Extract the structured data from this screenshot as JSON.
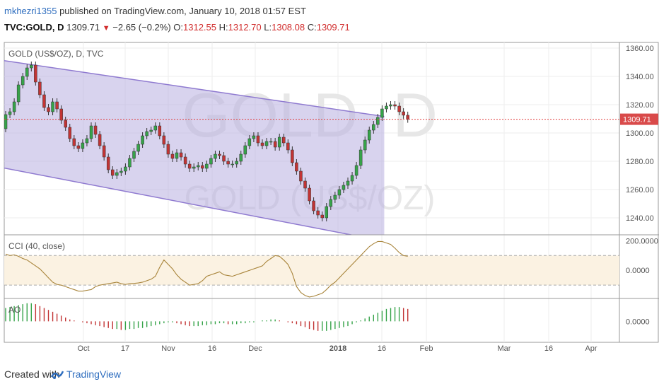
{
  "header": {
    "user": "mkhezri1355",
    "published_text": "published on TradingView.com, January 10, 2018 01:57 EST",
    "symbol": "TVC:GOLD, D",
    "last": "1309.71",
    "change": "−2.65 (−0.2%)",
    "o_label": "O:",
    "o_value": "1312.55",
    "h_label": "H:",
    "h_value": "1312.70",
    "l_label": "L:",
    "l_value": "1308.08",
    "c_label": "C:",
    "c_value": "1309.71"
  },
  "footer": {
    "created_with": "Created with",
    "brand": "TradingView"
  },
  "chart_data": [
    {
      "type": "candlestick",
      "title": "GOLD (US$/OZ), D, TVC",
      "watermark_line1": "GOLD, D",
      "watermark_line2": "GOLD (US$/OZ)",
      "x_ticks": [
        "Oct",
        "17",
        "Nov",
        "16",
        "Dec",
        "2018",
        "16",
        "Feb",
        "Mar",
        "16",
        "Apr"
      ],
      "y_ticks": [
        1360,
        1340,
        1320,
        1300,
        1280,
        1260,
        1240
      ],
      "ylim": [
        1228,
        1364
      ],
      "last_price_label": "1309.71",
      "last_price": 1309.71,
      "grid": true,
      "channel": {
        "upper": [
          [
            0,
            1351
          ],
          [
            90,
            1311
          ]
        ],
        "lower": [
          [
            0,
            1275
          ],
          [
            79,
            1229
          ]
        ]
      },
      "closes": [
        1313,
        1315,
        1322,
        1334,
        1340,
        1346,
        1348,
        1336,
        1327,
        1318,
        1315,
        1322,
        1317,
        1309,
        1304,
        1296,
        1291,
        1289,
        1293,
        1296,
        1305,
        1299,
        1291,
        1283,
        1274,
        1270,
        1272,
        1273,
        1276,
        1282,
        1287,
        1292,
        1298,
        1301,
        1302,
        1305,
        1298,
        1292,
        1285,
        1282,
        1286,
        1283,
        1278,
        1275,
        1276,
        1277,
        1275,
        1278,
        1282,
        1285,
        1284,
        1280,
        1278,
        1278,
        1280,
        1285,
        1291,
        1296,
        1298,
        1293,
        1291,
        1294,
        1294,
        1290,
        1297,
        1293,
        1288,
        1279,
        1273,
        1266,
        1261,
        1252,
        1245,
        1242,
        1240,
        1248,
        1253,
        1256,
        1260,
        1263,
        1266,
        1270,
        1277,
        1288,
        1295,
        1302,
        1306,
        1311,
        1317,
        1319,
        1320,
        1319,
        1315,
        1312.55,
        1309.71
      ],
      "opens": [
        1303,
        1313,
        1315,
        1322,
        1334,
        1340,
        1346,
        1348,
        1336,
        1327,
        1318,
        1315,
        1322,
        1317,
        1309,
        1304,
        1296,
        1291,
        1289,
        1293,
        1296,
        1305,
        1299,
        1291,
        1283,
        1274,
        1270,
        1272,
        1273,
        1276,
        1282,
        1287,
        1292,
        1298,
        1301,
        1302,
        1305,
        1298,
        1292,
        1285,
        1282,
        1286,
        1283,
        1278,
        1275,
        1276,
        1277,
        1275,
        1278,
        1282,
        1285,
        1284,
        1280,
        1278,
        1278,
        1280,
        1285,
        1291,
        1296,
        1298,
        1293,
        1291,
        1294,
        1294,
        1290,
        1297,
        1293,
        1288,
        1279,
        1273,
        1266,
        1261,
        1252,
        1245,
        1242,
        1240,
        1248,
        1253,
        1256,
        1260,
        1263,
        1266,
        1270,
        1277,
        1288,
        1295,
        1302,
        1306,
        1311,
        1317,
        1319,
        1320,
        1319,
        1315,
        1312.55
      ],
      "cci": {
        "title": "CCI (40, close)",
        "y_ticks": [
          "200.0000",
          "0.0000"
        ],
        "ylim": [
          -190,
          240
        ],
        "band": [
          100,
          -100
        ],
        "values": [
          110,
          100,
          105,
          95,
          80,
          70,
          50,
          30,
          10,
          -20,
          -50,
          -80,
          -95,
          -100,
          -110,
          -120,
          -130,
          -140,
          -140,
          -135,
          -130,
          -110,
          -100,
          -95,
          -90,
          -85,
          -80,
          -90,
          -95,
          -90,
          -88,
          -85,
          -80,
          -70,
          -60,
          -40,
          20,
          70,
          40,
          10,
          -30,
          -60,
          -80,
          -100,
          -95,
          -90,
          -70,
          -40,
          -30,
          -20,
          -10,
          -30,
          -35,
          -40,
          -30,
          -20,
          -10,
          0,
          10,
          20,
          30,
          60,
          80,
          100,
          95,
          70,
          40,
          -20,
          -110,
          -150,
          -170,
          -180,
          -175,
          -165,
          -155,
          -130,
          -100,
          -80,
          -50,
          -20,
          10,
          40,
          70,
          100,
          130,
          160,
          180,
          195,
          195,
          185,
          175,
          150,
          120,
          100,
          95
        ]
      },
      "ao": {
        "title": "AO",
        "y_ticks": [
          "0.0000"
        ],
        "ylim": [
          -22,
          24
        ],
        "values": [
          14,
          15,
          16,
          17,
          18,
          19,
          19,
          18,
          16,
          14,
          12,
          10,
          8,
          6,
          4,
          2,
          1,
          0,
          -1,
          -2,
          -3,
          -4,
          -5,
          -6,
          -7,
          -8,
          -8,
          -9,
          -9,
          -8,
          -8,
          -7,
          -7,
          -6,
          -5,
          -4,
          -3,
          -2,
          -1,
          -1,
          -2,
          -3,
          -4,
          -5,
          -5,
          -5,
          -4,
          -4,
          -3,
          -3,
          -2,
          -2,
          -3,
          -3,
          -3,
          -2,
          -2,
          -1,
          -1,
          0,
          1,
          1,
          2,
          2,
          1,
          0,
          -1,
          -2,
          -3,
          -5,
          -6,
          -8,
          -9,
          -10,
          -10,
          -10,
          -9,
          -8,
          -7,
          -6,
          -5,
          -3,
          -1,
          1,
          3,
          5,
          7,
          9,
          11,
          13,
          14,
          15,
          15,
          14,
          13
        ]
      },
      "colors": {
        "up": "#36a349",
        "down": "#c23434",
        "channel_fill": "#b8aee0",
        "channel_line": "#8f7ad0",
        "cci_line": "#a8843a",
        "cci_band": "#fbf2e2",
        "price_line": "#e04040"
      }
    }
  ]
}
